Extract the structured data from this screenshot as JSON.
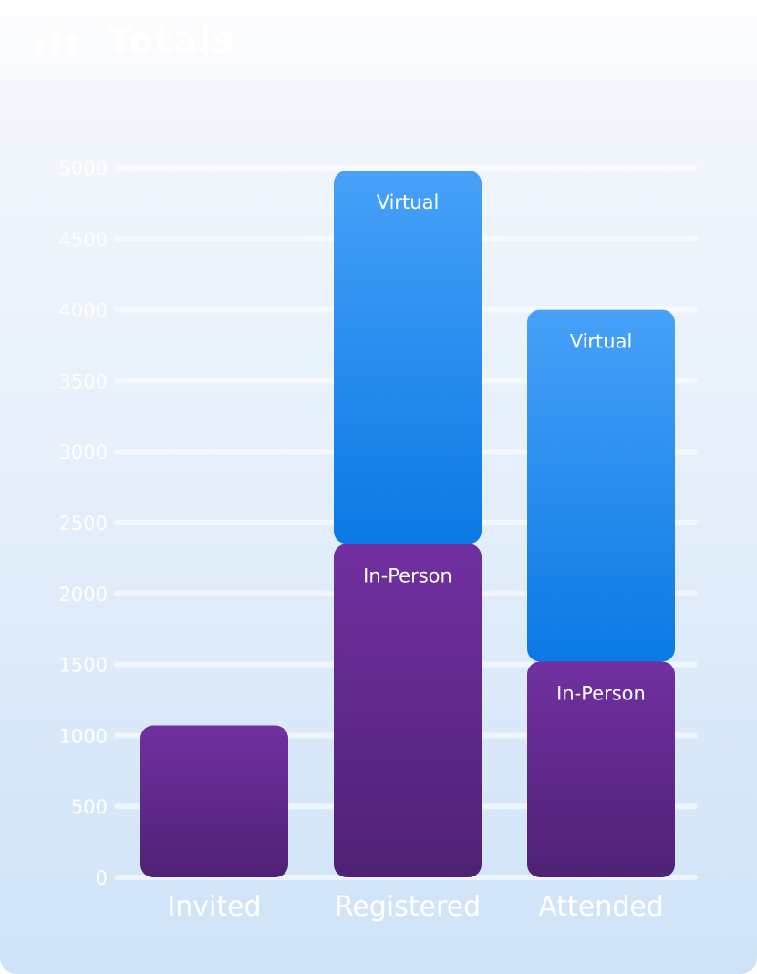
{
  "card": {
    "title": "Totals"
  },
  "chart_data": {
    "type": "bar",
    "stacked": true,
    "title": "Totals",
    "categories": [
      "Invited",
      "Registered",
      "Attended"
    ],
    "ylim": [
      0,
      5000
    ],
    "yticks": [
      0,
      500,
      1000,
      1500,
      2000,
      2500,
      3000,
      3500,
      4000,
      4500,
      5000
    ],
    "grid": true,
    "series": [
      {
        "name": "In-Person",
        "values": [
          1070,
          2350,
          1520
        ],
        "color_top": "#7130a1",
        "color_bottom": "#4f2275"
      },
      {
        "name": "Virtual",
        "values": [
          null,
          2630,
          2480
        ],
        "color_top": "#47a1f8",
        "color_bottom": "#0b79e4"
      }
    ],
    "segment_labels": {
      "In-Person": "In-Person",
      "Virtual": "Virtual"
    }
  }
}
